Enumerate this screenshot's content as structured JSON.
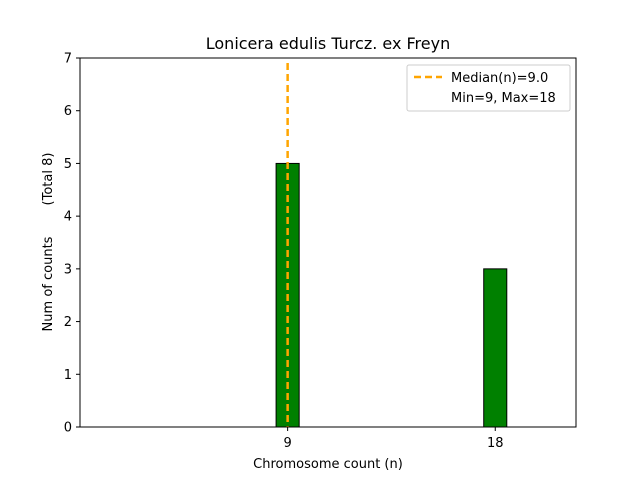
{
  "chart_data": {
    "type": "bar",
    "title": "Lonicera edulis Turcz. ex Freyn",
    "xlabel": "Chromosome count (n)",
    "ylabel": "Num of counts",
    "ylabel_total": "(Total 8)",
    "categories": [
      9,
      18
    ],
    "values": [
      5,
      3
    ],
    "xlim": [
      0,
      21.5
    ],
    "ylim": [
      0,
      7
    ],
    "xticks": [
      9,
      18
    ],
    "yticks": [
      0,
      1,
      2,
      3,
      4,
      5,
      6,
      7
    ],
    "median": 9.0,
    "legend": {
      "placement": "top-right",
      "median_label": "Median(n)=9.0",
      "range_label": "Min=9, Max=18"
    },
    "colors": {
      "bar": "#008000",
      "bar_edge": "#000000",
      "median_line": "#FFA500"
    },
    "grid": false
  }
}
